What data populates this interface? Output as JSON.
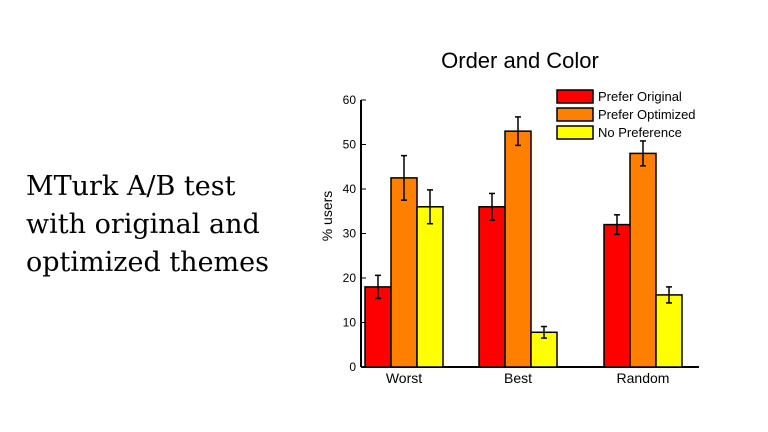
{
  "slide": {
    "lines": [
      "MTurk A/B test",
      "with original and",
      "optimized themes"
    ]
  },
  "chart_data": {
    "type": "bar",
    "title": "Order and Color",
    "xlabel": "",
    "ylabel": "% users",
    "ylim": [
      0,
      60
    ],
    "yticks": [
      0,
      10,
      20,
      30,
      40,
      50,
      60
    ],
    "categories": [
      "Worst",
      "Best",
      "Random"
    ],
    "series": [
      {
        "name": "Prefer Original",
        "color": "#ff0000",
        "values": [
          18,
          36,
          32
        ],
        "errors": [
          2.6,
          3.0,
          2.2
        ]
      },
      {
        "name": "Prefer Optimized",
        "color": "#ff8000",
        "values": [
          42.5,
          53,
          48
        ],
        "errors": [
          5.0,
          3.2,
          2.8
        ]
      },
      {
        "name": "No Preference",
        "color": "#ffff00",
        "values": [
          36,
          7.8,
          16.2
        ],
        "errors": [
          3.8,
          1.3,
          1.8
        ]
      }
    ],
    "legend": "top-right",
    "grid": false
  }
}
